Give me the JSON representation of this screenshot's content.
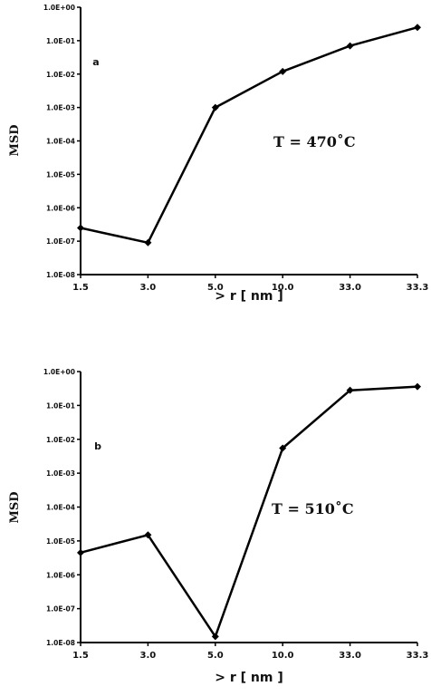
{
  "chart_data": [
    {
      "type": "line",
      "panel_label": "a",
      "annotation": "T = 470˚C",
      "ylabel": "MSD",
      "xlabel": "> r [ nm ]",
      "yscale": "log",
      "ylim": [
        1e-08,
        1
      ],
      "yticks": [
        "1.0E-08",
        "1.0E-07",
        "1.0E-06",
        "1.0E-05",
        "1.0E-04",
        "1.0E-03",
        "1.0E-02",
        "1.0E-01",
        "1.0E+00"
      ],
      "categories": [
        "1.5",
        "3.0",
        "5.0",
        "10.0",
        "33.0",
        "33.3"
      ],
      "values": [
        2.5e-07,
        9e-08,
        0.001,
        0.012,
        0.07,
        0.25
      ]
    },
    {
      "type": "line",
      "panel_label": "b",
      "annotation": "T = 510˚C",
      "ylabel": "MSD",
      "xlabel": "> r [ nm ]",
      "yscale": "log",
      "ylim": [
        1e-08,
        1
      ],
      "yticks": [
        "1.0E-08",
        "1.0E-07",
        "1.0E-06",
        "1.0E-05",
        "1.0E-04",
        "1.0E-03",
        "1.0E-02",
        "1.0E-01",
        "1.0E+00"
      ],
      "categories": [
        "1.5",
        "3.0",
        "5.0",
        "10.0",
        "33.0",
        "33.3"
      ],
      "values": [
        4.5e-06,
        1.5e-05,
        1.5e-08,
        0.0055,
        0.28,
        0.36
      ]
    }
  ]
}
